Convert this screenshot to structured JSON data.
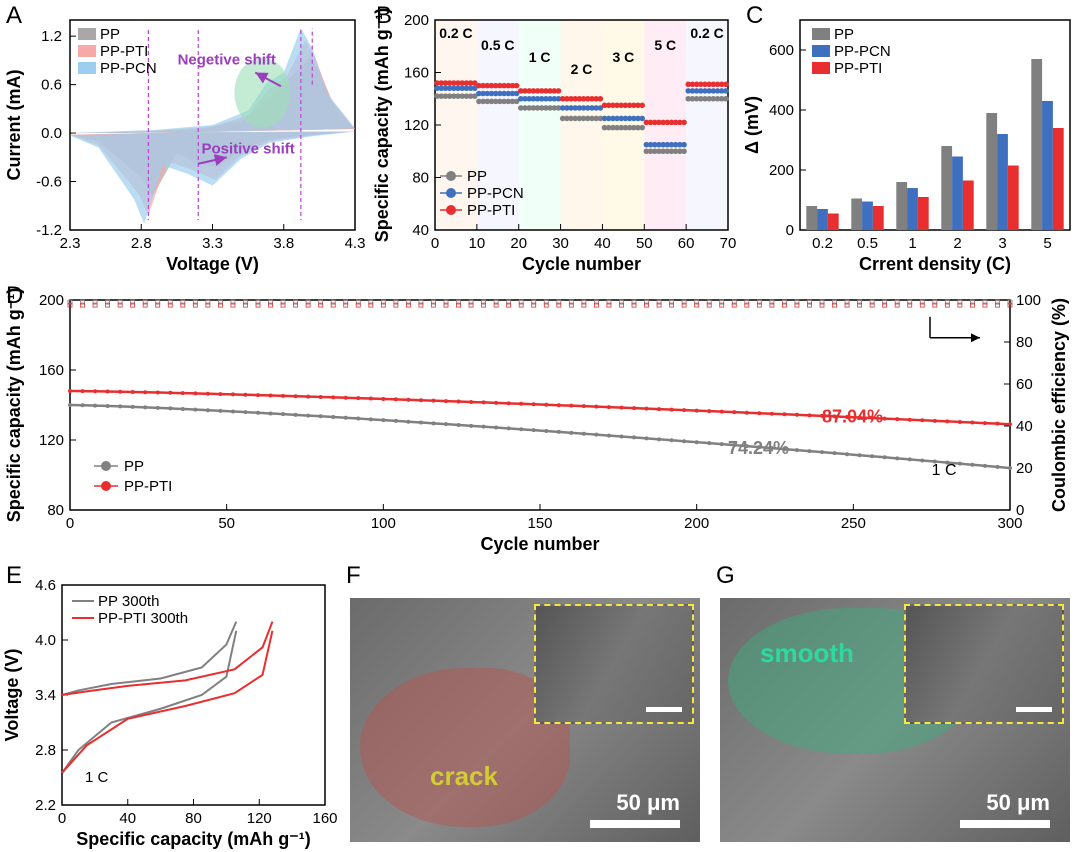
{
  "colors": {
    "pp": "#808080",
    "pp_pti": "#e82e2e",
    "pp_pcn": "#3f6fbf",
    "cv_pp_fill": "#a8a8a8",
    "cv_pti_fill": "#f7a8a8",
    "cv_pcn_fill": "#9dcef0",
    "cv_green_arrow_region": "#9de0b8",
    "axis": "#000000",
    "grid_light": "#e8e8e8",
    "panelB_bands": [
      "#fff0e6",
      "#f0f0ff",
      "#e6fff2",
      "#fff2e0",
      "#fff6d8",
      "#ffe0ec",
      "#f0f0ff"
    ],
    "purple": "#9b3dbd",
    "crack_overlay": "#b4554f",
    "smooth_overlay": "#3fa97d",
    "crack_text": "#d3cc34",
    "smooth_text": "#2fd8a0"
  },
  "panelA": {
    "label": "A",
    "xlabel": "Voltage (V)",
    "ylabel": "Current (mA)",
    "xlim": [
      2.3,
      4.3
    ],
    "ylim": [
      -1.2,
      1.4
    ],
    "xticks": [
      2.3,
      2.8,
      3.3,
      3.8,
      4.3
    ],
    "yticks": [
      -1.2,
      -0.6,
      0.0,
      0.6,
      1.2
    ],
    "legend": [
      "PP",
      "PP-PTI",
      "PP-PCN"
    ],
    "annotations": {
      "neg_shift": "Negetive shift",
      "pos_shift": "Positive shift"
    },
    "cv_curves": {
      "pp": {
        "anodic": [
          [
            2.3,
            0
          ],
          [
            2.8,
            0.02
          ],
          [
            3.2,
            0.05
          ],
          [
            3.5,
            0.15
          ],
          [
            3.65,
            0.35
          ],
          [
            3.78,
            0.58
          ],
          [
            3.98,
            0.92
          ],
          [
            4.05,
            0.78
          ],
          [
            4.15,
            0.35
          ],
          [
            4.3,
            0.05
          ]
        ],
        "cathodic": [
          [
            4.3,
            0.02
          ],
          [
            4.0,
            -0.02
          ],
          [
            3.7,
            -0.08
          ],
          [
            3.5,
            -0.2
          ],
          [
            3.35,
            -0.42
          ],
          [
            3.2,
            -0.38
          ],
          [
            3.05,
            -0.25
          ],
          [
            2.88,
            -0.78
          ],
          [
            2.8,
            -0.55
          ],
          [
            2.5,
            -0.1
          ],
          [
            2.3,
            -0.02
          ]
        ]
      },
      "pp_pti": {
        "anodic": [
          [
            2.3,
            0
          ],
          [
            2.9,
            0.03
          ],
          [
            3.3,
            0.08
          ],
          [
            3.55,
            0.22
          ],
          [
            3.7,
            0.55
          ],
          [
            3.82,
            0.7
          ],
          [
            3.95,
            1.15
          ],
          [
            4.02,
            0.95
          ],
          [
            4.12,
            0.45
          ],
          [
            4.3,
            0.05
          ]
        ],
        "cathodic": [
          [
            4.3,
            0.02
          ],
          [
            4.0,
            -0.03
          ],
          [
            3.7,
            -0.1
          ],
          [
            3.5,
            -0.28
          ],
          [
            3.32,
            -0.58
          ],
          [
            3.15,
            -0.45
          ],
          [
            2.98,
            -0.35
          ],
          [
            2.85,
            -1.02
          ],
          [
            2.78,
            -0.75
          ],
          [
            2.5,
            -0.15
          ],
          [
            2.3,
            -0.02
          ]
        ]
      },
      "pp_pcn": {
        "anodic": [
          [
            2.3,
            0
          ],
          [
            2.9,
            0.04
          ],
          [
            3.3,
            0.1
          ],
          [
            3.55,
            0.28
          ],
          [
            3.68,
            0.62
          ],
          [
            3.8,
            0.75
          ],
          [
            3.92,
            1.3
          ],
          [
            4.0,
            1.05
          ],
          [
            4.1,
            0.5
          ],
          [
            4.3,
            0.06
          ]
        ],
        "cathodic": [
          [
            4.3,
            0.02
          ],
          [
            4.0,
            -0.04
          ],
          [
            3.7,
            -0.12
          ],
          [
            3.5,
            -0.32
          ],
          [
            3.3,
            -0.65
          ],
          [
            3.12,
            -0.5
          ],
          [
            2.95,
            -0.4
          ],
          [
            2.82,
            -1.12
          ],
          [
            2.75,
            -0.82
          ],
          [
            2.5,
            -0.18
          ],
          [
            2.3,
            -0.03
          ]
        ]
      }
    }
  },
  "panelB": {
    "label": "B",
    "xlabel": "Cycle number",
    "ylabel": "Specific capacity (mAh g⁻¹)",
    "xlim": [
      0,
      70
    ],
    "ylim": [
      40,
      200
    ],
    "xticks": [
      0,
      10,
      20,
      30,
      40,
      50,
      60,
      70
    ],
    "yticks": [
      40,
      80,
      120,
      160,
      200
    ],
    "legend": [
      "PP",
      "PP-PCN",
      "PP-PTI"
    ],
    "c_rates": [
      "0.2 C",
      "0.5 C",
      "1 C",
      "2 C",
      "3 C",
      "5 C",
      "0.2 C"
    ],
    "band_bounds": [
      0,
      10,
      20,
      30,
      40,
      50,
      60,
      70
    ],
    "series": {
      "pp": {
        "rates": [
          142,
          138,
          133,
          125,
          118,
          100,
          140
        ]
      },
      "pp_pcn": {
        "rates": [
          148,
          144,
          140,
          133,
          125,
          105,
          146
        ]
      },
      "pp_pti": {
        "rates": [
          152,
          150,
          146,
          140,
          135,
          122,
          151
        ]
      }
    }
  },
  "panelC": {
    "label": "C",
    "xlabel": "Crrent density (C)",
    "ylabel": "Δ (mV)",
    "xlim_categories": [
      "0.2",
      "0.5",
      "1",
      "2",
      "3",
      "5"
    ],
    "ylim": [
      0,
      700
    ],
    "yticks": [
      0,
      200,
      400,
      600
    ],
    "legend": [
      "PP",
      "PP-PCN",
      "PP-PTI"
    ],
    "data": {
      "pp": [
        80,
        105,
        160,
        280,
        390,
        570
      ],
      "pp_pcn": [
        70,
        95,
        140,
        245,
        320,
        430
      ],
      "pp_pti": [
        55,
        80,
        110,
        165,
        215,
        340
      ]
    },
    "bar_width": 0.24
  },
  "panelD": {
    "label": "D",
    "xlabel": "Cycle number",
    "ylabel_left": "Specific capacity (mAh g⁻¹)",
    "ylabel_right": "Coulombic efficiency (%)",
    "xlim": [
      0,
      300
    ],
    "ylim_left": [
      80,
      200
    ],
    "ylim_right": [
      0,
      100
    ],
    "xticks": [
      0,
      50,
      100,
      150,
      200,
      250,
      300
    ],
    "yticks_left": [
      80,
      120,
      160,
      200
    ],
    "yticks_right": [
      0,
      20,
      40,
      60,
      80,
      100
    ],
    "legend": [
      "PP",
      "PP-PTI"
    ],
    "rate_label": "1 C",
    "retention_labels": {
      "pp": "74.24%",
      "pp_pti": "87.04%"
    },
    "series": {
      "pp": {
        "start": 140,
        "end": 104
      },
      "pp_pti": {
        "start": 148,
        "end": 129
      },
      "ce_pp": 99,
      "ce_pti": 99
    }
  },
  "panelE": {
    "label": "E",
    "xlabel": "Specific capacity (mAh g⁻¹)",
    "ylabel": "Voltage (V)",
    "xlim": [
      0,
      160
    ],
    "ylim": [
      2.2,
      4.6
    ],
    "xticks": [
      0,
      40,
      80,
      120,
      160
    ],
    "yticks": [
      2.2,
      2.8,
      3.4,
      4.0,
      4.6
    ],
    "legend": [
      "PP 300th",
      "PP-PTI 300th"
    ],
    "rate_label": "1 C",
    "curves": {
      "pp": {
        "charge": [
          [
            0,
            3.4
          ],
          [
            10,
            3.45
          ],
          [
            30,
            3.52
          ],
          [
            60,
            3.58
          ],
          [
            85,
            3.7
          ],
          [
            100,
            3.95
          ],
          [
            106,
            4.2
          ]
        ],
        "discharge": [
          [
            106,
            4.1
          ],
          [
            100,
            3.6
          ],
          [
            85,
            3.4
          ],
          [
            60,
            3.25
          ],
          [
            30,
            3.1
          ],
          [
            10,
            2.8
          ],
          [
            0,
            2.55
          ]
        ]
      },
      "pp_pti": {
        "charge": [
          [
            0,
            3.4
          ],
          [
            15,
            3.44
          ],
          [
            40,
            3.5
          ],
          [
            75,
            3.56
          ],
          [
            105,
            3.68
          ],
          [
            122,
            3.92
          ],
          [
            128,
            4.2
          ]
        ],
        "discharge": [
          [
            128,
            4.1
          ],
          [
            122,
            3.62
          ],
          [
            105,
            3.42
          ],
          [
            75,
            3.28
          ],
          [
            40,
            3.14
          ],
          [
            15,
            2.85
          ],
          [
            0,
            2.55
          ]
        ]
      }
    }
  },
  "panelF": {
    "label": "F",
    "text": "crack",
    "scale": "50 μm"
  },
  "panelG": {
    "label": "G",
    "text": "smooth",
    "scale": "50 μm"
  }
}
